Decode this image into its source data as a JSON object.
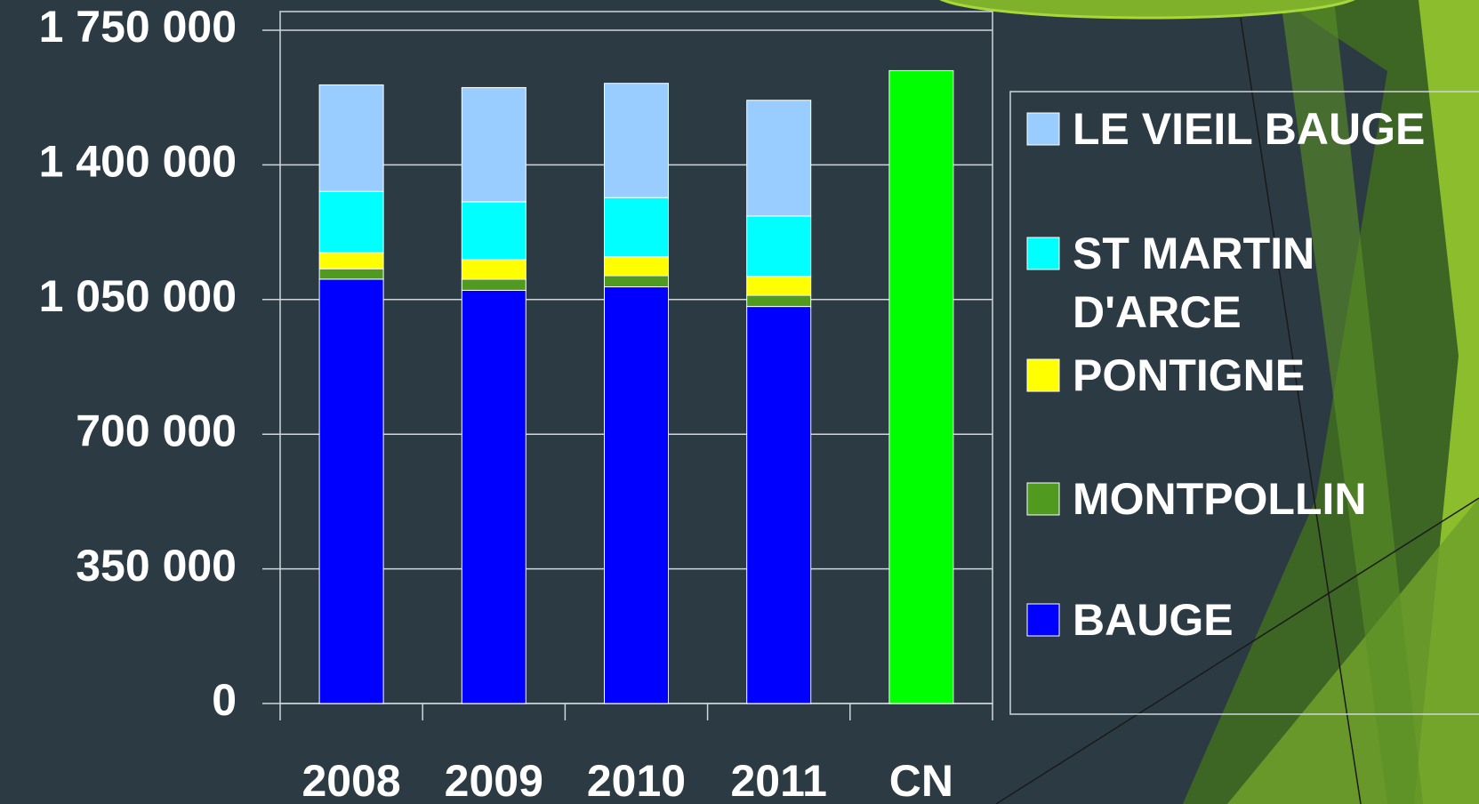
{
  "chart_data": {
    "type": "bar",
    "stacked": true,
    "categories": [
      "2008",
      "2009",
      "2010",
      "2011",
      "CN"
    ],
    "series": [
      {
        "name": "BAUGE",
        "color": "#0000ff",
        "values": [
          1103000,
          1074000,
          1083000,
          1032000,
          null
        ]
      },
      {
        "name": "MONTPOLLIN",
        "color": "#4f9a1f",
        "values": [
          27000,
          29000,
          29000,
          29000,
          null
        ]
      },
      {
        "name": "PONTIGNE",
        "color": "#ffff00",
        "values": [
          42000,
          51000,
          49000,
          49000,
          null
        ]
      },
      {
        "name": "ST MARTIN D'ARCE",
        "color": "#00ffff",
        "values": [
          159000,
          150000,
          154000,
          157000,
          null
        ]
      },
      {
        "name": "LE VIEIL BAUGE",
        "color": "#99ccff",
        "values": [
          277000,
          297000,
          297000,
          301000,
          null
        ]
      },
      {
        "color": "#00ff00",
        "values": [
          null,
          null,
          null,
          null,
          1645000
        ]
      }
    ],
    "ylim": [
      0,
      1750000
    ],
    "yticks": [
      0,
      {
        "value": 350000,
        "label": "350 000"
      },
      {
        "value": 700000,
        "label": "700 000"
      },
      {
        "value": 1050000,
        "label": "1 050 000"
      },
      {
        "value": 1400000,
        "label": "1 400 000"
      },
      {
        "value": 1750000,
        "label": "1 750 000"
      }
    ],
    "grid": true,
    "legend": "right"
  }
}
